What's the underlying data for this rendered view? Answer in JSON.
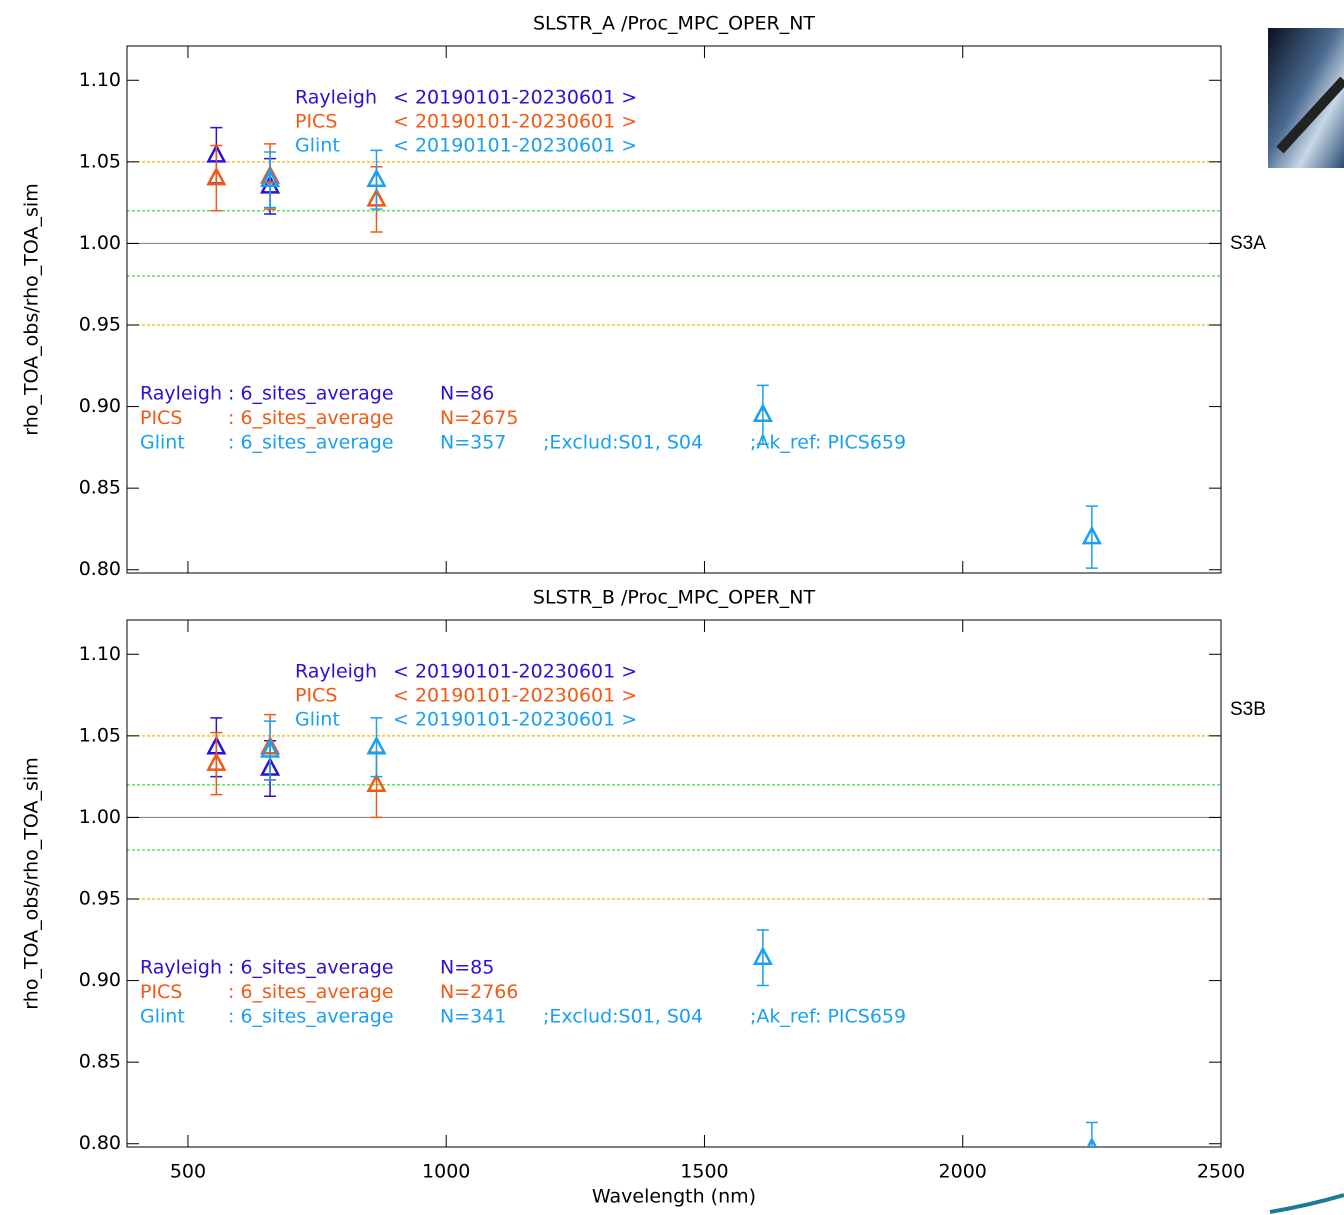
{
  "chart_data": [
    {
      "type": "scatter",
      "title": "SLSTR_A /Proc_MPC_OPER_NT",
      "ylabel": "rho_TOA_obs/rho_TOA_sim",
      "panel_label": "S3A",
      "period": "< 20190101-20230601 >",
      "xlim": [
        382,
        2500
      ],
      "ylim": [
        0.798,
        1.121
      ],
      "xticks": [
        500,
        1000,
        1500,
        2000,
        2500
      ],
      "yticks": [
        {
          "value": 0.8,
          "label": "0.80"
        },
        0.85,
        {
          "value": 0.9,
          "label": "0.90"
        },
        0.95,
        {
          "value": 1.0,
          "label": "1.00"
        },
        1.05,
        {
          "value": 1.1,
          "label": "1.10"
        }
      ],
      "reference_lines": [
        {
          "value": 1.05,
          "color": "#f0b400",
          "dashed": true
        },
        {
          "value": 0.95,
          "color": "#f0b400",
          "dashed": true
        },
        {
          "value": 1.02,
          "color": "#22dd22",
          "dashed": true
        },
        {
          "value": 0.98,
          "color": "#22dd22",
          "dashed": true
        },
        {
          "value": 1.0,
          "color": "#888888",
          "dashed": false
        }
      ],
      "series": [
        {
          "name": "Rayleigh",
          "color": "#2a10d8",
          "x": [
            555,
            659
          ],
          "values": [
            1.054,
            1.035
          ],
          "errors": [
            0.017,
            0.017
          ],
          "site_text": ": 6_sites_average",
          "n_text": "N=86",
          "notes": []
        },
        {
          "name": "PICS",
          "color": "#f05a14",
          "x": [
            555,
            659,
            865
          ],
          "values": [
            1.04,
            1.041,
            1.027
          ],
          "errors": [
            0.02,
            0.02,
            0.02
          ],
          "site_text": ": 6_sites_average",
          "n_text": "N=2675",
          "notes": []
        },
        {
          "name": "Glint",
          "color": "#1aa0f0",
          "x": [
            659,
            865,
            1613,
            2250
          ],
          "values": [
            1.039,
            1.039,
            0.895,
            0.82
          ],
          "errors": [
            0.017,
            0.018,
            0.018,
            0.019
          ],
          "site_text": ": 6_sites_average",
          "n_text": "N=357",
          "notes": [
            ";Exclud:S01, S04",
            ";Ak_ref: PICS659"
          ]
        }
      ]
    },
    {
      "type": "scatter",
      "title": "SLSTR_B /Proc_MPC_OPER_NT",
      "ylabel": "rho_TOA_obs/rho_TOA_sim",
      "xlabel": "Wavelength (nm)",
      "panel_label": "S3B",
      "period": "< 20190101-20230601 >",
      "xlim": [
        382,
        2500
      ],
      "ylim": [
        0.798,
        1.121
      ],
      "xticks": [
        500,
        1000,
        1500,
        2000,
        2500
      ],
      "yticks": [
        {
          "value": 0.8,
          "label": "0.80"
        },
        0.85,
        {
          "value": 0.9,
          "label": "0.90"
        },
        0.95,
        {
          "value": 1.0,
          "label": "1.00"
        },
        1.05,
        {
          "value": 1.1,
          "label": "1.10"
        }
      ],
      "reference_lines": [
        {
          "value": 1.05,
          "color": "#f0b400",
          "dashed": true
        },
        {
          "value": 0.95,
          "color": "#f0b400",
          "dashed": true
        },
        {
          "value": 1.02,
          "color": "#22dd22",
          "dashed": true
        },
        {
          "value": 0.98,
          "color": "#22dd22",
          "dashed": true
        },
        {
          "value": 1.0,
          "color": "#888888",
          "dashed": false
        }
      ],
      "series": [
        {
          "name": "Rayleigh",
          "color": "#2a10d8",
          "x": [
            555,
            659
          ],
          "values": [
            1.043,
            1.03
          ],
          "errors": [
            0.018,
            0.017
          ],
          "site_text": ": 6_sites_average",
          "n_text": "N=85",
          "notes": []
        },
        {
          "name": "PICS",
          "color": "#f05a14",
          "x": [
            555,
            659,
            865
          ],
          "values": [
            1.033,
            1.043,
            1.02
          ],
          "errors": [
            0.019,
            0.02,
            0.02
          ],
          "site_text": ": 6_sites_average",
          "n_text": "N=2766",
          "notes": []
        },
        {
          "name": "Glint",
          "color": "#1aa0f0",
          "x": [
            659,
            865,
            1613,
            2250
          ],
          "values": [
            1.041,
            1.043,
            0.914,
            0.797
          ],
          "errors": [
            0.018,
            0.018,
            0.017,
            0.016
          ],
          "site_text": ": 6_sites_average",
          "n_text": "N=341",
          "notes": [
            ";Exclud:S01, S04",
            ";Ak_ref: PICS659"
          ]
        }
      ]
    }
  ]
}
